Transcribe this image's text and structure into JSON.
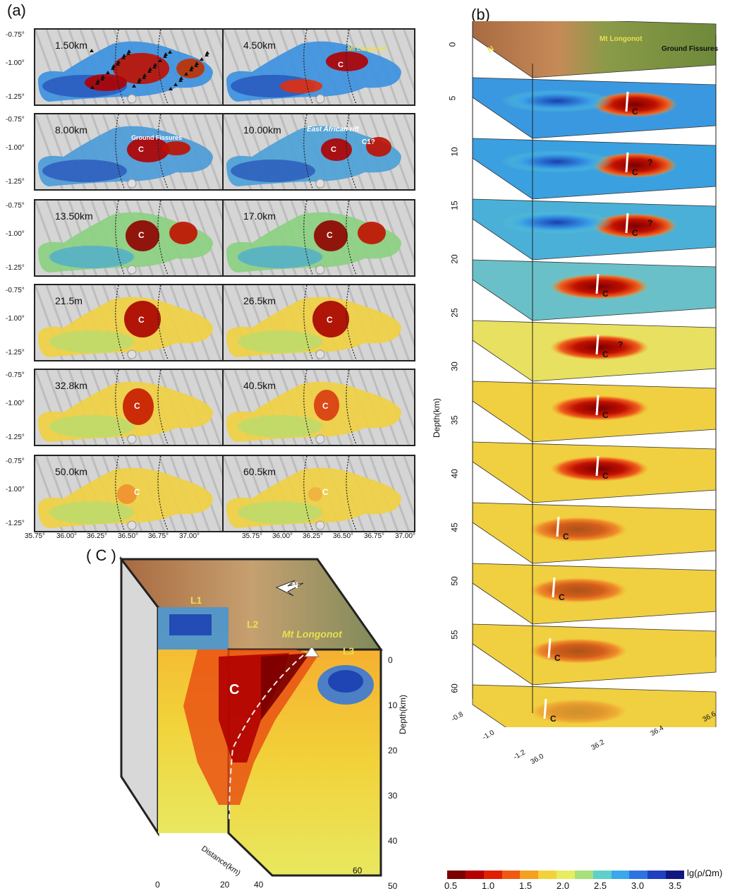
{
  "panels": {
    "a": "(a)",
    "b": "(b)",
    "c": "( C )"
  },
  "panel_a": {
    "depths": [
      "1.50km",
      "4.50km",
      "8.00km",
      "10.00km",
      "13.50km",
      "17.0km",
      "21.5m",
      "26.5km",
      "32.8km",
      "40.5km",
      "50.0km",
      "60.5km"
    ],
    "y_ticks": [
      "-0.75°",
      "-1.00°",
      "-1.25°"
    ],
    "x_ticks": [
      "35.75°",
      "36.00°",
      "36.25°",
      "36.50°",
      "36.75°",
      "37.00°"
    ],
    "labels": {
      "mt_longonot": "Mt Longonot",
      "ground_fissures": "Ground Fissures",
      "east_african_rift": "East African rift",
      "c": "C",
      "c1": "C1?"
    }
  },
  "panel_b": {
    "depth_axis_label": "Depth(km)",
    "depth_ticks": [
      "0",
      "5",
      "10",
      "15",
      "20",
      "25",
      "30",
      "35",
      "40",
      "45",
      "50",
      "55",
      "60"
    ],
    "lat_ticks": [
      "-0.8",
      "-1.0",
      "-1.2"
    ],
    "lon_ticks": [
      "36.0",
      "36.2",
      "36.4",
      "36.6"
    ],
    "labels": {
      "mt_longonot": "Mt Longonot",
      "ground_fissures": "Ground Fissures",
      "n": "N",
      "c": "C",
      "q": "?"
    }
  },
  "panel_c": {
    "labels": {
      "l1": "L1",
      "l2": "L2",
      "l3": "L3",
      "mt_longonot": "Mt Longonot",
      "c": "C",
      "n": "N"
    },
    "depth_axis_label": "Depth(km)",
    "depth_ticks": [
      "0",
      "10",
      "20",
      "30",
      "40",
      "50"
    ],
    "distance_axis_label": "Distance(km)",
    "distance_ticks": [
      "0",
      "20",
      "40",
      "60"
    ]
  },
  "colorbar": {
    "title": "lg(ρ/Ωm)",
    "ticks": [
      "0.5",
      "1.0",
      "1.5",
      "2.0",
      "2.5",
      "3.0",
      "3.5"
    ],
    "colors": [
      "#7a0000",
      "#b50000",
      "#e02000",
      "#f05a10",
      "#f5a020",
      "#f2d23a",
      "#e8ec60",
      "#a8e07a",
      "#5ed0c8",
      "#3aa8ea",
      "#2e74e0",
      "#2040c0",
      "#101880"
    ]
  }
}
